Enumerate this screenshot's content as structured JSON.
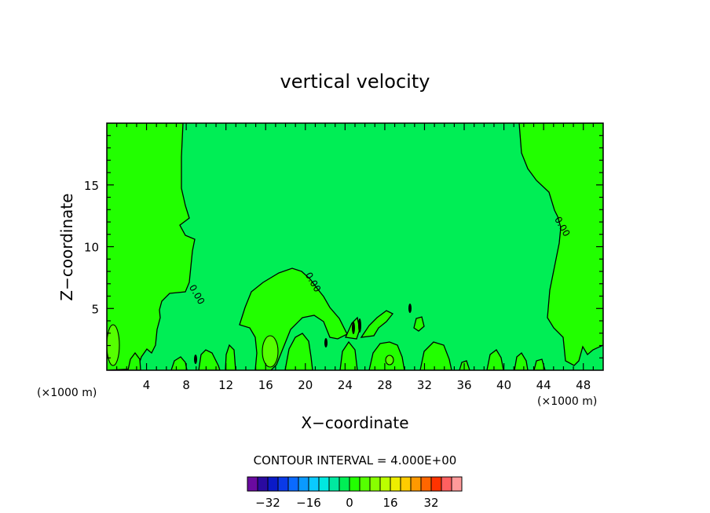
{
  "chart_data": {
    "type": "contour",
    "title": "vertical velocity",
    "xlabel": "X−coordinate",
    "ylabel": "Z−coordinate",
    "x_unit_left": "(×1000 m)",
    "x_unit_right": "(×1000 m)",
    "xlim": [
      0,
      50
    ],
    "ylim": [
      0,
      20
    ],
    "x_ticks": [
      4,
      8,
      12,
      16,
      20,
      24,
      28,
      32,
      36,
      40,
      44,
      48
    ],
    "y_ticks": [
      5,
      10,
      15
    ],
    "background_level_color": "#00ee55",
    "positive_region_color": "#22ff00",
    "contour_labels": [
      {
        "text": "0.00",
        "x": 8.8,
        "y": 6.0
      },
      {
        "text": "0.00",
        "x": 20.5,
        "y": 7.0
      },
      {
        "text": "0.00",
        "x": 45.6,
        "y": 11.5
      }
    ],
    "contour_interval_text": "CONTOUR INTERVAL = 4.000E+00",
    "colorbar": {
      "colors": [
        "#6a0aa0",
        "#2a0aa0",
        "#0a1ac8",
        "#0a3ae8",
        "#0a6aff",
        "#0a9aff",
        "#0acaff",
        "#00e8e0",
        "#00e8a0",
        "#00ee55",
        "#22ff00",
        "#55ff00",
        "#88ff00",
        "#bbff00",
        "#eeee00",
        "#ffcc00",
        "#ff9900",
        "#ff6600",
        "#ff3300",
        "#ff6060",
        "#ff9a9a"
      ],
      "tick_labels": [
        "−32",
        "−16",
        "0",
        "16",
        "32"
      ],
      "tick_values": [
        -32,
        -16,
        0,
        16,
        32
      ]
    }
  }
}
